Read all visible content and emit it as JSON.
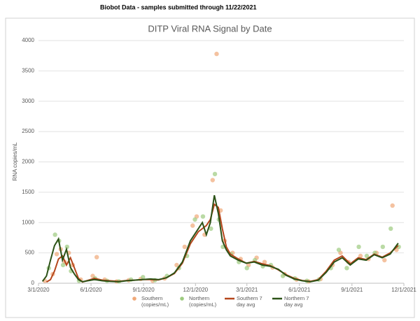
{
  "header": {
    "title": "Biobot Data - samples submitted through 11/22/2021"
  },
  "chart_data": {
    "type": "line",
    "title": "DITP Viral RNA Signal by Date",
    "y_label": "RNA copies/mL",
    "xlim": [
      "3/1/2020",
      "12/1/2021"
    ],
    "xticks": [
      "3/1/2020",
      "6/1/2020",
      "9/1/2020",
      "12/1/2020",
      "3/1/2021",
      "6/1/2021",
      "9/1/2021",
      "12/1/2021"
    ],
    "ylim": [
      0,
      4000
    ],
    "yticks": [
      0,
      500,
      1000,
      1500,
      2000,
      2500,
      3000,
      3500,
      4000
    ],
    "grid": true,
    "series": [
      {
        "name": "Southern (copies/mL)",
        "type": "scatter",
        "color": "#f0a878",
        "x": [
          "3/12/2020",
          "3/26/2020",
          "4/2/2020",
          "4/9/2020",
          "4/16/2020",
          "4/23/2020",
          "4/30/2020",
          "5/14/2020",
          "6/4/2020",
          "6/11/2020",
          "6/25/2020",
          "7/16/2020",
          "8/6/2020",
          "8/27/2020",
          "9/17/2020",
          "10/8/2020",
          "10/29/2020",
          "11/12/2020",
          "11/26/2020",
          "12/3/2020",
          "12/17/2020",
          "12/31/2020",
          "1/7/2021",
          "1/14/2021",
          "1/21/2021",
          "2/4/2021",
          "2/18/2021",
          "3/4/2021",
          "3/18/2021",
          "4/1/2021",
          "4/15/2021",
          "5/6/2021",
          "5/27/2021",
          "6/17/2021",
          "7/8/2021",
          "7/29/2021",
          "8/12/2021",
          "8/26/2021",
          "9/16/2021",
          "9/30/2021",
          "10/14/2021",
          "10/28/2021",
          "11/11/2021",
          "11/18/2021"
        ],
        "values": [
          40,
          150,
          480,
          560,
          350,
          500,
          300,
          60,
          120,
          430,
          60,
          30,
          50,
          70,
          40,
          80,
          300,
          600,
          950,
          1100,
          800,
          1700,
          3780,
          1200,
          700,
          500,
          400,
          300,
          420,
          350,
          260,
          150,
          60,
          30,
          70,
          300,
          500,
          350,
          450,
          400,
          500,
          380,
          1280,
          550
        ]
      },
      {
        "name": "Northern (copies/mL)",
        "type": "scatter",
        "color": "#9dcb7f",
        "x": [
          "3/19/2020",
          "3/30/2020",
          "4/6/2020",
          "4/13/2020",
          "4/20/2020",
          "4/27/2020",
          "5/11/2020",
          "6/8/2020",
          "6/29/2020",
          "7/20/2020",
          "8/10/2020",
          "8/31/2020",
          "9/21/2020",
          "10/12/2020",
          "11/2/2020",
          "11/16/2020",
          "11/30/2020",
          "12/14/2020",
          "12/28/2020",
          "1/4/2021",
          "1/11/2021",
          "1/18/2021",
          "2/1/2021",
          "2/15/2021",
          "3/1/2021",
          "3/15/2021",
          "3/29/2021",
          "4/12/2021",
          "5/3/2021",
          "5/24/2021",
          "6/14/2021",
          "7/5/2021",
          "7/26/2021",
          "8/9/2021",
          "8/23/2021",
          "9/13/2021",
          "9/27/2021",
          "10/11/2021",
          "10/25/2021",
          "11/8/2021",
          "11/22/2021"
        ],
        "values": [
          250,
          800,
          700,
          300,
          600,
          200,
          40,
          80,
          40,
          30,
          60,
          100,
          50,
          120,
          250,
          450,
          1050,
          1100,
          900,
          1800,
          1050,
          600,
          480,
          350,
          250,
          380,
          280,
          300,
          120,
          80,
          40,
          60,
          250,
          550,
          250,
          600,
          450,
          500,
          600,
          900,
          600
        ]
      },
      {
        "name": "Southern 7 day avg",
        "type": "line",
        "color": "#b5461c",
        "x": [
          "3/15/2020",
          "3/22/2020",
          "3/29/2020",
          "4/5/2020",
          "4/12/2020",
          "4/19/2020",
          "4/26/2020",
          "5/3/2020",
          "5/10/2020",
          "5/17/2020",
          "6/7/2020",
          "6/21/2020",
          "7/5/2020",
          "7/19/2020",
          "8/2/2020",
          "8/16/2020",
          "8/30/2020",
          "9/13/2020",
          "9/27/2020",
          "10/11/2020",
          "10/25/2020",
          "11/8/2020",
          "11/22/2020",
          "12/6/2020",
          "12/20/2020",
          "12/27/2020",
          "1/3/2021",
          "1/10/2021",
          "1/17/2021",
          "1/24/2021",
          "1/31/2021",
          "2/14/2021",
          "2/28/2021",
          "3/14/2021",
          "3/28/2021",
          "4/11/2021",
          "4/25/2021",
          "5/9/2021",
          "5/23/2021",
          "6/6/2021",
          "6/20/2021",
          "7/4/2021",
          "7/18/2021",
          "8/1/2021",
          "8/15/2021",
          "8/29/2021",
          "9/12/2021",
          "9/26/2021",
          "10/10/2021",
          "10/24/2021",
          "11/7/2021",
          "11/21/2021"
        ],
        "values": [
          20,
          60,
          200,
          400,
          450,
          300,
          420,
          250,
          80,
          20,
          80,
          50,
          40,
          30,
          45,
          50,
          60,
          60,
          55,
          90,
          160,
          330,
          650,
          850,
          950,
          1050,
          1300,
          1250,
          900,
          600,
          480,
          400,
          330,
          360,
          320,
          290,
          220,
          140,
          80,
          45,
          30,
          60,
          200,
          380,
          450,
          320,
          420,
          390,
          480,
          430,
          500,
          620
        ]
      },
      {
        "name": "Northern 7 day avg",
        "type": "line",
        "color": "#2c5217",
        "x": [
          "3/8/2020",
          "3/15/2020",
          "3/22/2020",
          "3/29/2020",
          "4/5/2020",
          "4/12/2020",
          "4/19/2020",
          "4/26/2020",
          "5/3/2020",
          "5/10/2020",
          "5/17/2020",
          "6/7/2020",
          "6/21/2020",
          "7/5/2020",
          "7/19/2020",
          "8/2/2020",
          "8/16/2020",
          "8/30/2020",
          "9/13/2020",
          "9/27/2020",
          "10/11/2020",
          "10/25/2020",
          "11/8/2020",
          "11/22/2020",
          "12/6/2020",
          "12/13/2020",
          "12/20/2020",
          "12/27/2020",
          "1/3/2021",
          "1/10/2021",
          "1/17/2021",
          "1/24/2021",
          "1/31/2021",
          "2/14/2021",
          "2/28/2021",
          "3/14/2021",
          "3/28/2021",
          "4/11/2021",
          "4/25/2021",
          "5/9/2021",
          "5/23/2021",
          "6/6/2021",
          "6/20/2021",
          "7/4/2021",
          "7/18/2021",
          "8/1/2021",
          "8/15/2021",
          "8/29/2021",
          "9/12/2021",
          "9/26/2021",
          "10/10/2021",
          "10/24/2021",
          "11/7/2021",
          "11/21/2021"
        ],
        "values": [
          30,
          120,
          380,
          620,
          730,
          380,
          560,
          260,
          150,
          60,
          25,
          60,
          40,
          30,
          25,
          40,
          50,
          60,
          70,
          60,
          90,
          170,
          350,
          700,
          900,
          1000,
          800,
          1000,
          1450,
          1150,
          700,
          550,
          450,
          380,
          330,
          350,
          300,
          280,
          230,
          130,
          70,
          40,
          25,
          50,
          180,
          350,
          420,
          300,
          400,
          380,
          470,
          420,
          480,
          660
        ]
      }
    ]
  }
}
